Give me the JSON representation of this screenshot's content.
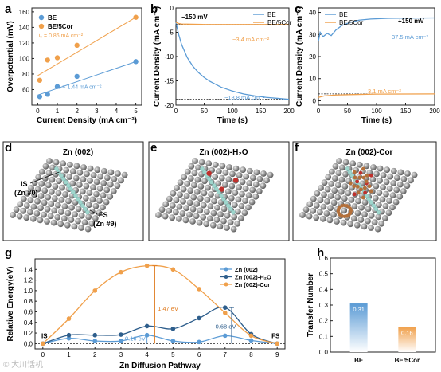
{
  "colors": {
    "blue": "#5b9bd5",
    "orange": "#f0a04b",
    "blue_light": "#9cc3e6",
    "orange_dark": "#e07b1f",
    "dark_blue": "#2e5e8c",
    "atom_gray": "#8a8a8a",
    "atom_teal": "#9fd6cc",
    "atom_red": "#c0302c",
    "atom_brown": "#b4703a"
  },
  "panel_labels": {
    "a": "a",
    "b": "b",
    "c": "c",
    "d": "d",
    "e": "e",
    "f": "f",
    "g": "g",
    "h": "h"
  },
  "watermark": "© 大川话机",
  "chart_data": [
    {
      "id": "a",
      "type": "scatter",
      "xlabel": "Current Density (mA cm⁻²)",
      "ylabel": "Overpotential (mV)",
      "xlim": [
        -0.3,
        5.3
      ],
      "ylim": [
        40,
        165
      ],
      "xticks": [
        0,
        1,
        2,
        3,
        4,
        5
      ],
      "yticks": [
        60,
        80,
        100,
        120,
        140,
        160
      ],
      "legend": [
        "BE",
        "BE/5Cor"
      ],
      "legend_position": "top-left",
      "series": [
        {
          "name": "BE",
          "color": "#5b9bd5",
          "x": [
            0.1,
            0.5,
            1.0,
            2.0,
            5.0
          ],
          "y": [
            51,
            54,
            64,
            77,
            96
          ],
          "fit": [
            [
              0,
              53
            ],
            [
              5,
              96
            ]
          ],
          "annotation": "i₀ = 1.44 mA cm⁻²"
        },
        {
          "name": "BE/5Cor",
          "color": "#f0a04b",
          "x": [
            0.1,
            0.5,
            1.0,
            2.0,
            5.0
          ],
          "y": [
            72,
            98,
            101,
            117,
            153
          ],
          "fit": [
            [
              0,
              78
            ],
            [
              5,
              153
            ]
          ],
          "annotation": "i₀ = 0.86 mA cm⁻²"
        }
      ]
    },
    {
      "id": "b",
      "type": "line",
      "title": "−150 mV",
      "xlabel": "Time (s)",
      "ylabel": "Current Density (mA cm⁻²)",
      "xlim": [
        0,
        200
      ],
      "ylim": [
        -20,
        0
      ],
      "xticks": [
        0,
        50,
        100,
        150,
        200
      ],
      "yticks": [
        0,
        -5,
        -10,
        -15,
        -20
      ],
      "legend": [
        "BE",
        "BE/5Cor"
      ],
      "legend_position": "top-right",
      "series": [
        {
          "name": "BE",
          "color": "#5b9bd5",
          "x": [
            0,
            5,
            10,
            20,
            30,
            40,
            50,
            60,
            80,
            100,
            120,
            140,
            160,
            180,
            200
          ],
          "y": [
            -3,
            -5.5,
            -7.5,
            -10.2,
            -12,
            -13.3,
            -14.3,
            -15.1,
            -16.3,
            -17.1,
            -17.7,
            -18.1,
            -18.4,
            -18.6,
            -18.8
          ],
          "end_label": "−18.8 mA cm⁻²",
          "ref": -18.8
        },
        {
          "name": "BE/5Cor",
          "color": "#f0a04b",
          "x": [
            0,
            5,
            10,
            50,
            100,
            150,
            200
          ],
          "y": [
            -3,
            -3.2,
            -3.3,
            -3.4,
            -3.4,
            -3.4,
            -3.4
          ],
          "end_label": "−3.4 mA cm⁻²",
          "ref": -3.4
        }
      ]
    },
    {
      "id": "c",
      "type": "line",
      "title": "+150 mV",
      "xlabel": "Time (s)",
      "ylabel": "Current Density (mA cm⁻²)",
      "xlim": [
        0,
        200
      ],
      "ylim": [
        -2,
        42
      ],
      "xticks": [
        0,
        50,
        100,
        150,
        200
      ],
      "yticks": [
        0,
        10,
        20,
        30,
        40
      ],
      "legend": [
        "BE",
        "BE/5Cor"
      ],
      "legend_position": "top-left",
      "series": [
        {
          "name": "BE",
          "color": "#5b9bd5",
          "x": [
            0,
            3,
            8,
            15,
            22,
            30,
            40,
            55,
            70,
            90,
            120,
            150,
            200
          ],
          "y": [
            27,
            31,
            29,
            30.5,
            29.5,
            32,
            34,
            35.5,
            36.5,
            37,
            37.3,
            37.4,
            37.5
          ],
          "end_label": "37.5 mA cm⁻²",
          "ref": 37.5
        },
        {
          "name": "BE/5Cor",
          "color": "#f0a04b",
          "x": [
            0,
            10,
            30,
            60,
            100,
            150,
            200
          ],
          "y": [
            1.5,
            2.2,
            2.6,
            2.8,
            3.0,
            3.05,
            3.1
          ],
          "end_label": "3.1 mA cm⁻²",
          "ref": 3.1
        }
      ]
    },
    {
      "id": "g",
      "type": "line",
      "xlabel": "Zn Diffusion Pathway",
      "ylabel": "Relative Energy(eV)",
      "xlim": [
        -0.3,
        9.3
      ],
      "ylim": [
        -0.1,
        1.6
      ],
      "xticks": [
        0,
        1,
        2,
        3,
        4,
        5,
        6,
        7,
        8,
        9
      ],
      "yticks": [
        0.0,
        0.2,
        0.4,
        0.6,
        0.8,
        1.0,
        1.2,
        1.4
      ],
      "legend": [
        "Zn (002)",
        "Zn (002)-H₂O",
        "Zn (002)-Cor"
      ],
      "legend_position": "top-right",
      "start_label": "IS",
      "end_label": "FS",
      "barriers": [
        {
          "label": "1.47 eV",
          "x": 4.3,
          "y0": 0.0,
          "y1": 1.47,
          "color": "#f0a04b"
        },
        {
          "label": "0.68 eV",
          "x": 7.25,
          "y0": 0.0,
          "y1": 0.68,
          "color": "#2e5e8c"
        },
        {
          "label": "0.16 eV",
          "x": 4.0,
          "y0": 0.0,
          "y1": 0.16,
          "color": "#5b9bd5"
        }
      ],
      "series": [
        {
          "name": "Zn (002)",
          "color": "#5b9bd5",
          "x": [
            0,
            1,
            2,
            3,
            4,
            5,
            6,
            7,
            8,
            9
          ],
          "y": [
            0.0,
            0.1,
            0.05,
            0.05,
            0.16,
            0.05,
            0.03,
            0.15,
            0.06,
            0.0
          ]
        },
        {
          "name": "Zn (002)-H₂O",
          "color": "#2e5e8c",
          "x": [
            0,
            1,
            2,
            3,
            4,
            5,
            6,
            7,
            8,
            9
          ],
          "y": [
            0.0,
            0.16,
            0.16,
            0.17,
            0.33,
            0.28,
            0.48,
            0.68,
            0.18,
            0.0
          ]
        },
        {
          "name": "Zn (002)-Cor",
          "color": "#f0a04b",
          "x": [
            0,
            1,
            2,
            3,
            4,
            5,
            6,
            7,
            8,
            9
          ],
          "y": [
            0.0,
            0.47,
            1.0,
            1.35,
            1.47,
            1.4,
            1.03,
            0.58,
            0.15,
            0.0
          ]
        }
      ]
    },
    {
      "id": "h",
      "type": "bar",
      "ylabel": "Transfer Number",
      "categories": [
        "BE",
        "BE/5Cor"
      ],
      "values": [
        0.31,
        0.16
      ],
      "value_labels": [
        "0.31",
        "0.16"
      ],
      "ylim": [
        0,
        0.6
      ],
      "yticks": [
        0.0,
        0.1,
        0.2,
        0.3,
        0.4,
        0.5,
        0.6
      ],
      "colors": [
        "#5b9bd5",
        "#f0a04b"
      ]
    }
  ],
  "structures": [
    {
      "id": "d",
      "title": "Zn (002)",
      "labels": [
        "IS\n(Zn #0)",
        "FS\n(Zn #9)"
      ],
      "adsorbate": "none"
    },
    {
      "id": "e",
      "title": "Zn (002)-H₂O",
      "labels": [],
      "adsorbate": "water"
    },
    {
      "id": "f",
      "title": "Zn (002)-Cor",
      "labels": [],
      "adsorbate": "coronene"
    }
  ]
}
